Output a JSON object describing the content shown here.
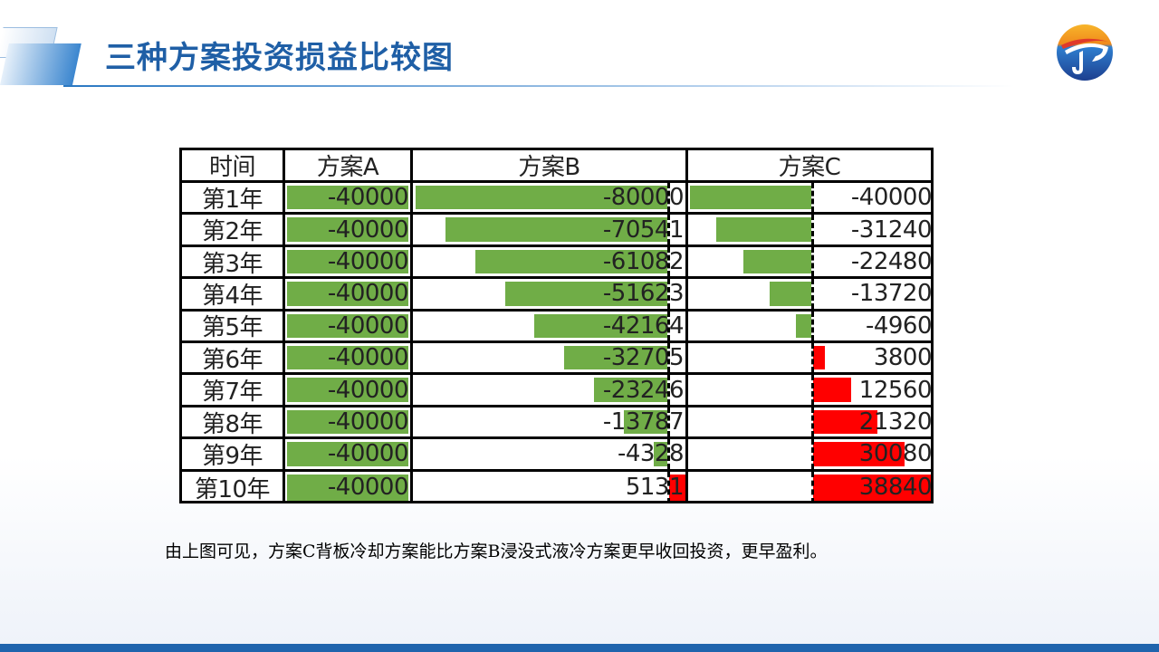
{
  "slide": {
    "title": "三种方案投资损益比较图",
    "caption": "由上图可见，方案C背板冷却方案能比方案B浸没式液冷方案更早收回投资，更早盈利。"
  },
  "colors": {
    "negative_bar": "#70ad47",
    "positive_bar": "#ff0000",
    "title": "#1f5fa6"
  },
  "chart_data": {
    "type": "table",
    "columns": [
      "时间",
      "方案A",
      "方案B",
      "方案C"
    ],
    "rows": [
      {
        "label": "第1年",
        "A": -40000,
        "B": -80000,
        "C": -40000
      },
      {
        "label": "第2年",
        "A": -40000,
        "B": -70541,
        "C": -31240
      },
      {
        "label": "第3年",
        "A": -40000,
        "B": -61082,
        "C": -22480
      },
      {
        "label": "第4年",
        "A": -40000,
        "B": -51623,
        "C": -13720
      },
      {
        "label": "第5年",
        "A": -40000,
        "B": -42164,
        "C": -4960
      },
      {
        "label": "第6年",
        "A": -40000,
        "B": -32705,
        "C": 3800
      },
      {
        "label": "第7年",
        "A": -40000,
        "B": -23246,
        "C": 12560
      },
      {
        "label": "第8年",
        "A": -40000,
        "B": -13787,
        "C": 21320
      },
      {
        "label": "第9年",
        "A": -40000,
        "B": -4328,
        "C": 30080
      },
      {
        "label": "第10年",
        "A": -40000,
        "B": 5131,
        "C": 38840
      }
    ]
  }
}
